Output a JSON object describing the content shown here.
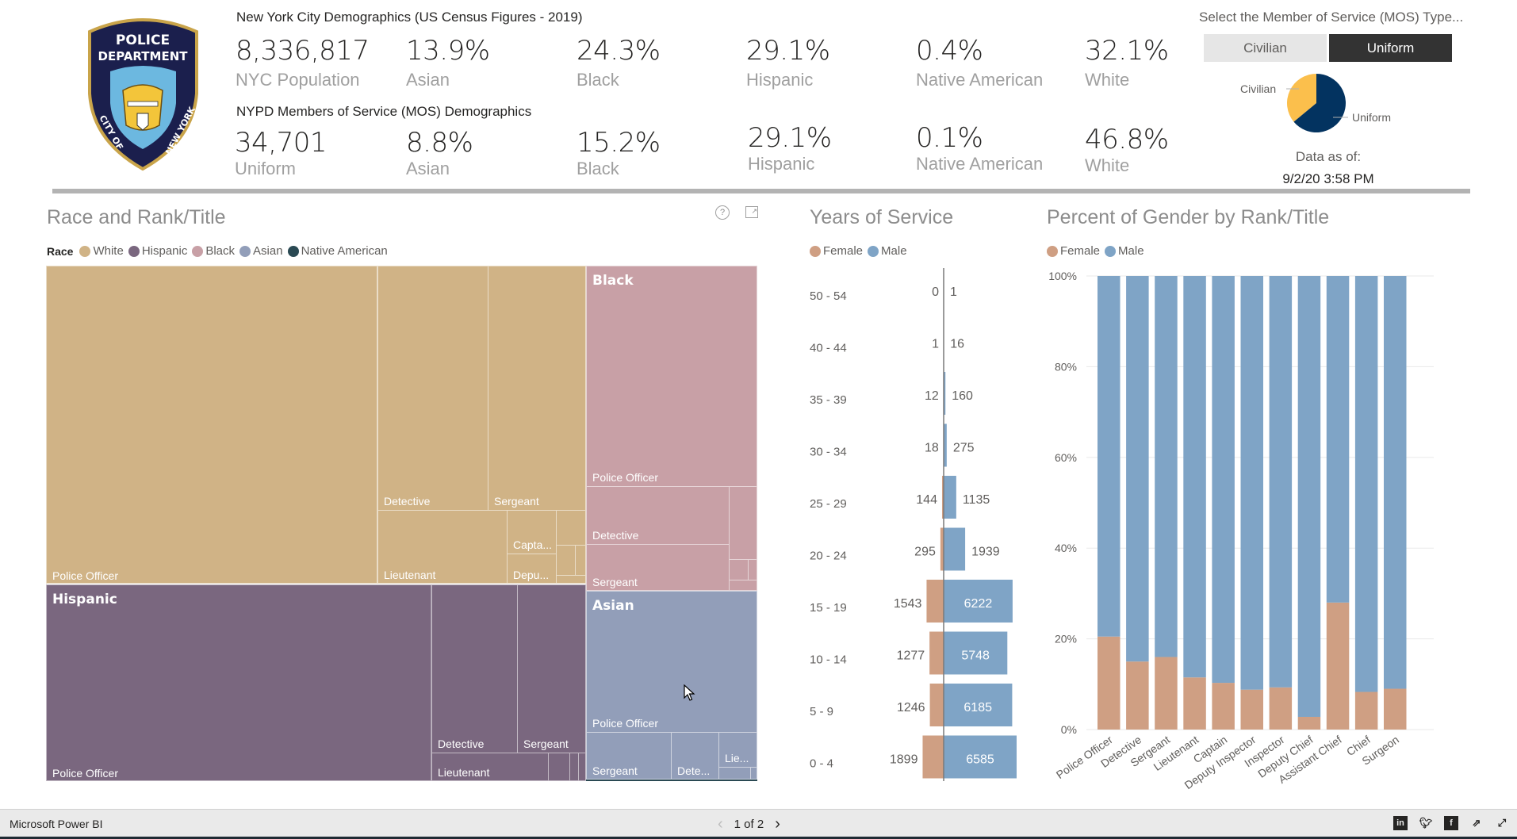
{
  "nyc": {
    "title": "New York City Demographics (US Census Figures - 2019)",
    "kpis": [
      {
        "value": "8,336,817",
        "label": "NYC Population"
      },
      {
        "value": "13.9%",
        "label": "Asian"
      },
      {
        "value": "24.3%",
        "label": "Black"
      },
      {
        "value": "29.1%",
        "label": "Hispanic"
      },
      {
        "value": "0.4%",
        "label": "Native American"
      },
      {
        "value": "32.1%",
        "label": "White"
      }
    ]
  },
  "nypd": {
    "title": "NYPD Members of Service (MOS) Demographics",
    "kpis": [
      {
        "value": "34,701",
        "label": "Uniform"
      },
      {
        "value": "8.8%",
        "label": "Asian"
      },
      {
        "value": "15.2%",
        "label": "Black"
      },
      {
        "value": "29.1%",
        "label": "Hispanic"
      },
      {
        "value": "0.1%",
        "label": "Native American"
      },
      {
        "value": "46.8%",
        "label": "White"
      }
    ]
  },
  "logo": {
    "line1": "POLICE",
    "line2": "DEPARTMENT",
    "arc_left": "CITY OF",
    "arc_right": "NEW YORK"
  },
  "slicer": {
    "title": "Select the Member of Service (MOS) Type...",
    "options": [
      {
        "label": "Civilian",
        "selected": false
      },
      {
        "label": "Uniform",
        "selected": true
      }
    ],
    "pie": {
      "labels": [
        "Civilian",
        "Uniform"
      ],
      "shares": [
        0.36,
        0.64
      ],
      "colors": [
        "#fbbf4c",
        "#033360"
      ]
    },
    "as_of_label": "Data as of:",
    "as_of_value": "9/2/20 3:58 PM"
  },
  "treemap": {
    "title": "Race and Rank/Title",
    "legend_title": "Race",
    "legend": [
      {
        "label": "White",
        "color": "#d0b386"
      },
      {
        "label": "Hispanic",
        "color": "#7a677f"
      },
      {
        "label": "Black",
        "color": "#c8a0a6"
      },
      {
        "label": "Asian",
        "color": "#929eb9"
      },
      {
        "label": "Native American",
        "color": "#2a4953"
      }
    ],
    "groups": {
      "white": {
        "name": "White",
        "labels": [
          "Police Officer",
          "Detective",
          "Sergeant",
          "Lieutenant",
          "Capta...",
          "Depu..."
        ]
      },
      "hispanic": {
        "name": "Hispanic",
        "labels": [
          "Police Officer",
          "Detective",
          "Sergeant",
          "Lieutenant"
        ]
      },
      "black": {
        "name": "Black",
        "labels": [
          "Police Officer",
          "Detective",
          "Sergeant"
        ]
      },
      "asian": {
        "name": "Asian",
        "labels": [
          "Police Officer",
          "Sergeant",
          "Dete...",
          "Lie..."
        ]
      }
    },
    "help_icon": "help-icon",
    "focus_icon": "focus-mode-icon"
  },
  "chart_data": [
    {
      "type": "bar",
      "orientation": "horizontal-diverging",
      "title": "Years of Service",
      "categories": [
        "50 - 54",
        "40 - 44",
        "35 - 39",
        "30 - 34",
        "25 - 29",
        "20 - 24",
        "15 - 19",
        "10 - 14",
        "5 - 9",
        "0 - 4"
      ],
      "series": [
        {
          "name": "Female",
          "color": "#cf9f83",
          "values": [
            0,
            1,
            12,
            18,
            144,
            295,
            1543,
            1277,
            1246,
            1899
          ]
        },
        {
          "name": "Male",
          "color": "#7fa4c6",
          "values": [
            1,
            16,
            160,
            275,
            1135,
            1939,
            6222,
            5748,
            6185,
            6585
          ]
        }
      ],
      "legend": [
        "Female",
        "Male"
      ],
      "legend_position": "top-left"
    },
    {
      "type": "bar",
      "stacked": "percent",
      "title": "Percent of Gender by Rank/Title",
      "categories": [
        "Police Officer",
        "Detective",
        "Sergeant",
        "Lieutenant",
        "Captain",
        "Deputy Inspector",
        "Inspector",
        "Deputy Chief",
        "Assistant Chief",
        "Chief",
        "Surgeon"
      ],
      "series": [
        {
          "name": "Female",
          "color": "#cf9f83",
          "values": [
            20.5,
            15,
            16,
            11.5,
            10.3,
            8.8,
            9.3,
            2.8,
            28,
            8.3,
            9
          ]
        },
        {
          "name": "Male",
          "color": "#7fa4c6",
          "values": [
            79.5,
            85,
            84,
            88.5,
            89.7,
            91.2,
            90.7,
            97.2,
            72,
            91.7,
            91
          ]
        }
      ],
      "yticks": [
        "0%",
        "20%",
        "40%",
        "60%",
        "80%",
        "100%"
      ],
      "ylim": [
        0,
        100
      ],
      "grid": true,
      "legend": [
        "Female",
        "Male"
      ],
      "legend_position": "top-left"
    }
  ],
  "footer": {
    "brand": "Microsoft Power BI",
    "page": "1 of 2",
    "prev": "‹",
    "next": "›",
    "share_icons": [
      "linkedin-icon",
      "twitter-icon",
      "facebook-icon",
      "share-icon",
      "fullscreen-icon"
    ]
  }
}
